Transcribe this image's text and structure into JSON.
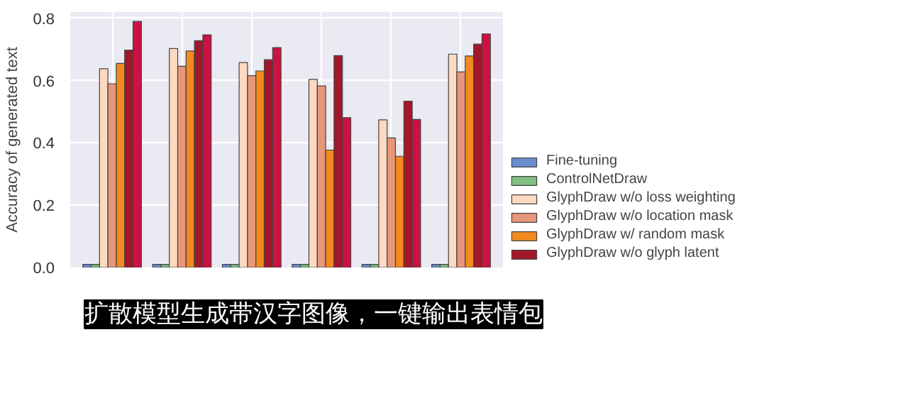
{
  "chart_data": {
    "type": "bar",
    "ylabel": "Accuracy of generated text",
    "categories": [
      null,
      null,
      null,
      null,
      null,
      null
    ],
    "series": [
      {
        "name": "Fine-tuning",
        "color": "#6a8fd0",
        "values": [
          0.01,
          0.01,
          0.01,
          0.01,
          0.01,
          0.01
        ]
      },
      {
        "name": "ControlNetDraw",
        "color": "#7fbf7f",
        "values": [
          0.01,
          0.01,
          0.01,
          0.01,
          0.01,
          0.01
        ]
      },
      {
        "name": "GlyphDraw w/o loss weighting",
        "color": "#fcd9bf",
        "values": [
          0.638,
          0.703,
          0.658,
          0.604,
          0.474,
          0.685
        ]
      },
      {
        "name": "GlyphDraw w/o location mask",
        "color": "#e8967a",
        "values": [
          0.59,
          0.646,
          0.616,
          0.583,
          0.416,
          0.628
        ]
      },
      {
        "name": "GlyphDraw w/ random mask",
        "color": "#f28a1e",
        "values": [
          0.655,
          0.695,
          0.631,
          0.377,
          0.357,
          0.679
        ]
      },
      {
        "name": "GlyphDraw w/o glyph latent",
        "color": "#a3172a",
        "values": [
          0.698,
          0.728,
          0.667,
          0.68,
          0.534,
          0.717
        ]
      },
      {
        "color": "#cc1143",
        "values": [
          0.79,
          0.747,
          0.706,
          0.481,
          0.475,
          0.75
        ]
      }
    ],
    "ylim": [
      0,
      0.82
    ],
    "yticks": [
      {
        "value": 0,
        "label": "0.0"
      },
      0.2,
      0.4,
      0.6,
      0.8
    ],
    "grid": true,
    "legend": "right",
    "tick_labels": "y",
    "annotations": [
      "扩散模型生成带汉字图像，一键输出表情包"
    ]
  }
}
